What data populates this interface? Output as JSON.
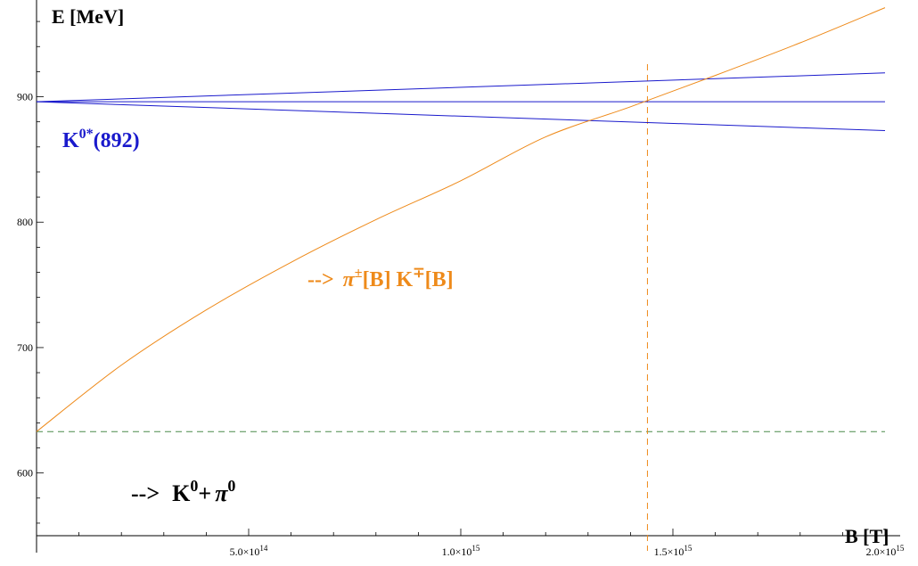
{
  "chart_data": {
    "type": "line",
    "xlabel": "B [T]",
    "ylabel": "E [MeV]",
    "xlim": [
      0,
      2000000000000000.0
    ],
    "ylim": [
      550,
      975
    ],
    "x_ticks": [
      {
        "value": 500000000000000.0,
        "mantissa": "5.0",
        "exponent": "14"
      },
      {
        "value": 1000000000000000.0,
        "mantissa": "1.0",
        "exponent": "15"
      },
      {
        "value": 1500000000000000.0,
        "mantissa": "1.5",
        "exponent": "15"
      },
      {
        "value": 2000000000000000.0,
        "mantissa": "2.0",
        "exponent": "15"
      }
    ],
    "y_ticks": [
      {
        "value": 600,
        "label": "600"
      },
      {
        "value": 700,
        "label": "700"
      },
      {
        "value": 800,
        "label": "800"
      },
      {
        "value": 900,
        "label": "900"
      }
    ],
    "series": [
      {
        "color": "#1a1acc",
        "x": [
          0,
          2000000000000000.0
        ],
        "y": [
          896,
          919
        ]
      },
      {
        "color": "#1a1acc",
        "x": [
          0,
          2000000000000000.0
        ],
        "y": [
          896,
          896
        ]
      },
      {
        "color": "#1a1acc",
        "x": [
          0,
          2000000000000000.0
        ],
        "y": [
          896,
          873
        ]
      },
      {
        "color": "#ee8a1a",
        "x": [
          0,
          200000000000000.0,
          400000000000000.0,
          600000000000000.0,
          800000000000000.0,
          1000000000000000.0,
          1200000000000000.0,
          1400000000000000.0,
          1600000000000000.0,
          1800000000000000.0,
          2000000000000000.0
        ],
        "y": [
          633,
          686,
          730,
          768,
          802,
          833,
          868,
          892,
          917,
          943,
          971
        ]
      }
    ],
    "reference_lines": [
      {
        "orientation": "horizontal",
        "value": 633,
        "color": "#4a8a4a",
        "style": "dashed"
      },
      {
        "orientation": "vertical",
        "value": 1440000000000000.0,
        "color": "#ee8a1a",
        "style": "dashed"
      }
    ],
    "annotations": {
      "k0star": {
        "base": "K",
        "sup": "0*",
        "tail": "(892)",
        "color": "#1a1acc"
      },
      "pik": {
        "arrow": "-->",
        "pi": "π",
        "pi_sup": "±",
        "mid": "[B] K",
        "k_sup": "∓",
        "tail": "[B]",
        "color": "#ee8a1a"
      },
      "k0pi0": {
        "arrow": "-->",
        "k": "K",
        "k_sup": "0",
        "plus": "+",
        "pi": "π",
        "pi_sup": "0",
        "color": "#000000"
      }
    },
    "grid": false
  },
  "colors": {
    "axis": "#000000"
  }
}
